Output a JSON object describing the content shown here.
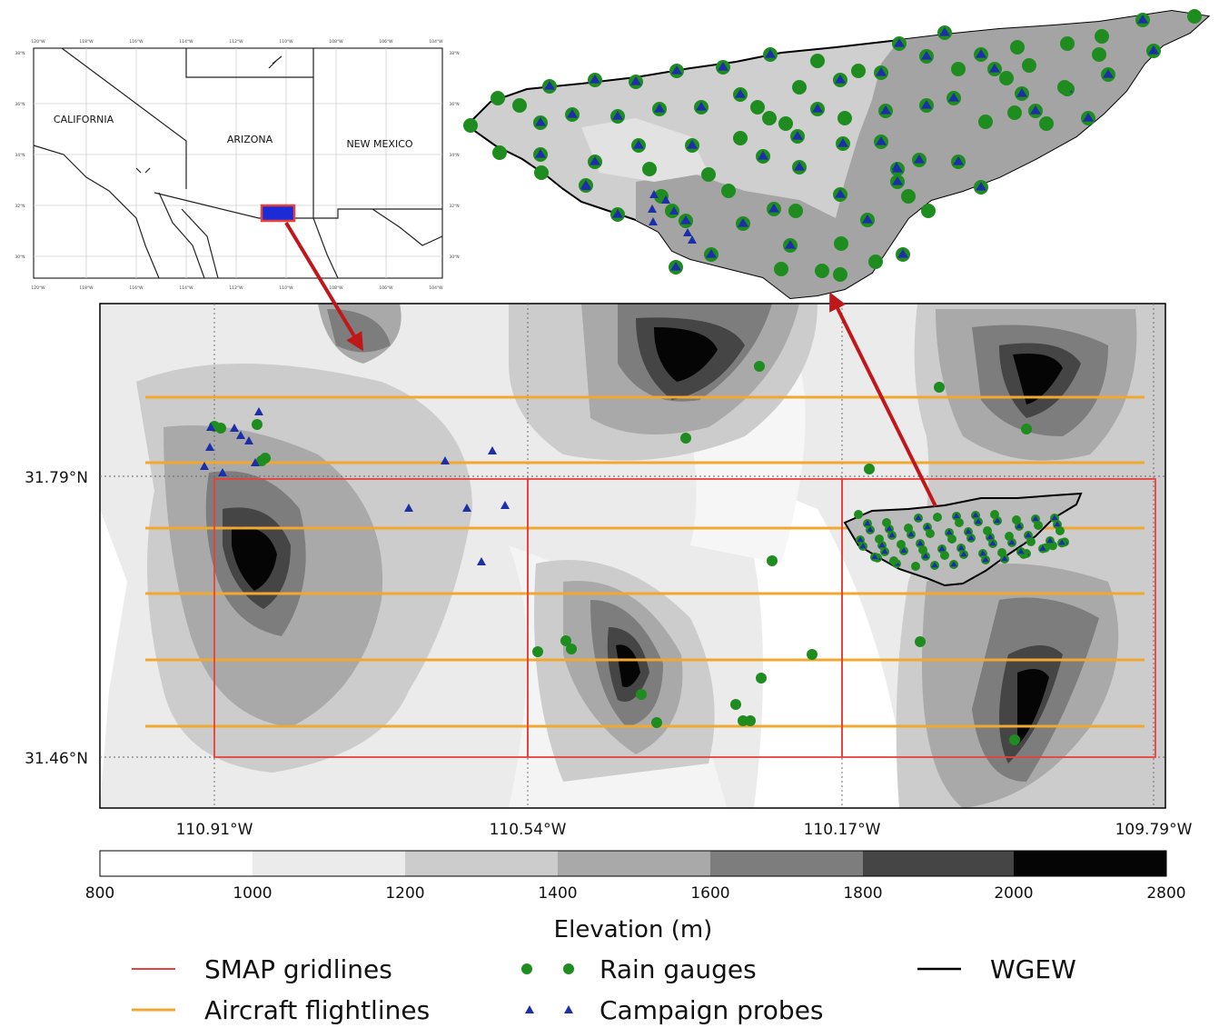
{
  "inset_map": {
    "states": [
      "CALIFORNIA",
      "ARIZONA",
      "NEW MEXICO"
    ],
    "top_ticks": [
      "120°W",
      "118°W",
      "116°W",
      "114°W",
      "112°W",
      "110°W",
      "108°W",
      "106°W",
      "104°W"
    ],
    "bottom_ticks": [
      "120°W",
      "118°W",
      "116°W",
      "114°W",
      "112°W",
      "110°W",
      "108°W",
      "106°W",
      "104°W"
    ],
    "left_ticks": [
      "38°N",
      "36°N",
      "34°N",
      "32°N",
      "30°N"
    ],
    "right_ticks": [
      "38°N",
      "36°N",
      "34°N",
      "32°N",
      "30°N"
    ]
  },
  "main_map": {
    "lat_ticks": [
      "31.79°N",
      "31.46°N"
    ],
    "lon_ticks": [
      "110.91°W",
      "110.54°W",
      "110.17°W",
      "109.79°W"
    ]
  },
  "colorbar": {
    "label": "Elevation (m)",
    "ticks": [
      "800",
      "1000",
      "1200",
      "1400",
      "1600",
      "1800",
      "2000",
      "2800"
    ],
    "colors": [
      "#ffffff",
      "#ebebeb",
      "#cccccc",
      "#a9a9a9",
      "#7d7d7d",
      "#454545",
      "#050505"
    ]
  },
  "legend": [
    {
      "label": "SMAP gridlines",
      "type": "line",
      "color": "#e8413a"
    },
    {
      "label": "Aircraft flightlines",
      "type": "line",
      "color": "#f0a830"
    },
    {
      "label": "Rain gauges",
      "type": "circle",
      "color": "#1f8c1f"
    },
    {
      "label": "Campaign probes",
      "type": "triangle",
      "color": "#1c2fa8"
    },
    {
      "label": "WGEW",
      "type": "line",
      "color": "#000000"
    }
  ],
  "colors": {
    "smap": "#e8413a",
    "flight": "#f0a830",
    "gauge": "#1f8c1f",
    "probe": "#1c2fa8",
    "arrow": "#c0181a"
  }
}
